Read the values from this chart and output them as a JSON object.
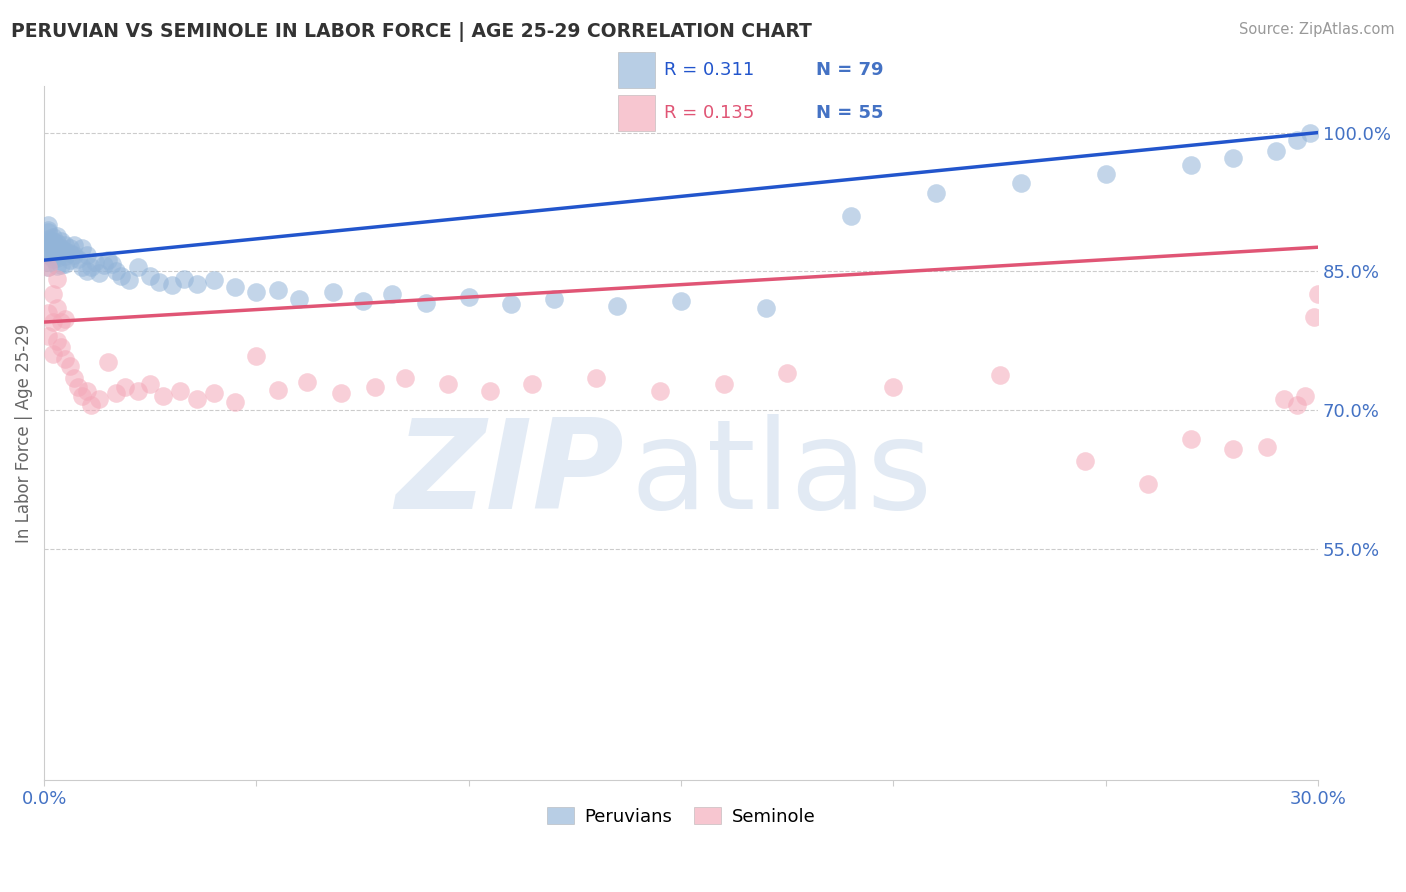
{
  "title": "PERUVIAN VS SEMINOLE IN LABOR FORCE | AGE 25-29 CORRELATION CHART",
  "source_text": "Source: ZipAtlas.com",
  "ylabel": "In Labor Force | Age 25-29",
  "xlim": [
    0.0,
    0.3
  ],
  "ylim": [
    0.3,
    1.05
  ],
  "yticks_right": [
    0.55,
    0.7,
    0.85,
    1.0
  ],
  "ytick_right_labels": [
    "55.0%",
    "70.0%",
    "85.0%",
    "100.0%"
  ],
  "blue_R": 0.311,
  "blue_N": 79,
  "pink_R": 0.135,
  "pink_N": 55,
  "blue_color": "#92B4D8",
  "pink_color": "#F4A8B8",
  "blue_line_color": "#2255CC",
  "pink_line_color": "#E05575",
  "legend_label_blue": "Peruvians",
  "legend_label_pink": "Seminole",
  "background_color": "#ffffff",
  "grid_color": "#cccccc",
  "title_color": "#333333",
  "axis_label_color": "#4472C4",
  "blue_intercept": 0.862,
  "blue_slope": 0.46,
  "pink_intercept": 0.795,
  "pink_slope": 0.27,
  "blue_x": [
    0.001,
    0.001,
    0.001,
    0.001,
    0.001,
    0.001,
    0.001,
    0.001,
    0.001,
    0.001,
    0.002,
    0.002,
    0.002,
    0.002,
    0.002,
    0.002,
    0.003,
    0.003,
    0.003,
    0.003,
    0.003,
    0.003,
    0.004,
    0.004,
    0.004,
    0.004,
    0.005,
    0.005,
    0.005,
    0.005,
    0.006,
    0.006,
    0.006,
    0.007,
    0.007,
    0.008,
    0.009,
    0.009,
    0.01,
    0.01,
    0.011,
    0.012,
    0.013,
    0.014,
    0.015,
    0.016,
    0.017,
    0.018,
    0.02,
    0.022,
    0.025,
    0.027,
    0.03,
    0.033,
    0.036,
    0.04,
    0.045,
    0.05,
    0.055,
    0.06,
    0.068,
    0.075,
    0.082,
    0.09,
    0.1,
    0.11,
    0.12,
    0.135,
    0.15,
    0.17,
    0.19,
    0.21,
    0.23,
    0.25,
    0.27,
    0.28,
    0.29,
    0.295,
    0.298
  ],
  "blue_y": [
    0.882,
    0.878,
    0.885,
    0.892,
    0.874,
    0.868,
    0.895,
    0.9,
    0.86,
    0.855,
    0.887,
    0.879,
    0.871,
    0.883,
    0.875,
    0.863,
    0.88,
    0.872,
    0.864,
    0.888,
    0.876,
    0.856,
    0.875,
    0.869,
    0.883,
    0.857,
    0.878,
    0.866,
    0.872,
    0.858,
    0.87,
    0.862,
    0.875,
    0.868,
    0.878,
    0.863,
    0.875,
    0.855,
    0.868,
    0.85,
    0.855,
    0.86,
    0.848,
    0.857,
    0.862,
    0.858,
    0.85,
    0.845,
    0.84,
    0.855,
    0.845,
    0.838,
    0.835,
    0.842,
    0.836,
    0.84,
    0.833,
    0.828,
    0.83,
    0.82,
    0.828,
    0.818,
    0.825,
    0.816,
    0.822,
    0.815,
    0.82,
    0.812,
    0.818,
    0.81,
    0.91,
    0.935,
    0.945,
    0.955,
    0.965,
    0.972,
    0.98,
    0.992,
    1.0
  ],
  "pink_x": [
    0.001,
    0.001,
    0.001,
    0.002,
    0.002,
    0.002,
    0.003,
    0.003,
    0.003,
    0.004,
    0.004,
    0.005,
    0.005,
    0.006,
    0.007,
    0.008,
    0.009,
    0.01,
    0.011,
    0.013,
    0.015,
    0.017,
    0.019,
    0.022,
    0.025,
    0.028,
    0.032,
    0.036,
    0.04,
    0.045,
    0.05,
    0.055,
    0.062,
    0.07,
    0.078,
    0.085,
    0.095,
    0.105,
    0.115,
    0.13,
    0.145,
    0.16,
    0.175,
    0.2,
    0.225,
    0.245,
    0.26,
    0.27,
    0.28,
    0.288,
    0.292,
    0.295,
    0.297,
    0.299,
    0.3
  ],
  "pink_y": [
    0.855,
    0.805,
    0.78,
    0.825,
    0.795,
    0.76,
    0.81,
    0.775,
    0.842,
    0.795,
    0.768,
    0.755,
    0.798,
    0.748,
    0.735,
    0.725,
    0.715,
    0.72,
    0.705,
    0.712,
    0.752,
    0.718,
    0.725,
    0.72,
    0.728,
    0.715,
    0.72,
    0.712,
    0.718,
    0.708,
    0.758,
    0.722,
    0.73,
    0.718,
    0.725,
    0.735,
    0.728,
    0.72,
    0.728,
    0.735,
    0.72,
    0.728,
    0.74,
    0.725,
    0.738,
    0.645,
    0.62,
    0.668,
    0.658,
    0.66,
    0.712,
    0.705,
    0.715,
    0.8,
    0.825
  ]
}
